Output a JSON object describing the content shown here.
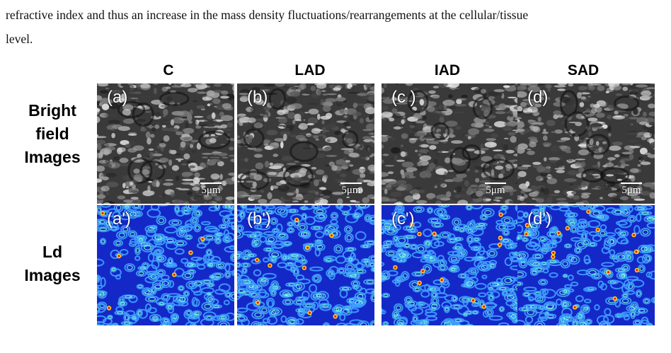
{
  "paragraph": {
    "line1": "refractive index and thus an increase in the mass density fluctuations/rearrangements at the cellular/tissue",
    "line2": "level."
  },
  "figure": {
    "column_headers": [
      "C",
      "LAD",
      "IAD",
      "SAD"
    ],
    "row_headers": {
      "bright": [
        "Bright",
        "field",
        "Images"
      ],
      "ld": [
        "Ld",
        "Images"
      ]
    },
    "bright_panels": [
      {
        "label": "(a)",
        "scale": "5μm"
      },
      {
        "label": "(b)",
        "scale": "5μm"
      },
      {
        "label": "(c )",
        "scale": "5μm"
      },
      {
        "label": "(d)",
        "scale": "5μm"
      }
    ],
    "ld_panels": [
      {
        "label": "(a')"
      },
      {
        "label": "(b')"
      },
      {
        "label": "(c')"
      },
      {
        "label": "(d')"
      }
    ],
    "colors": {
      "ld_background": "#1428c8",
      "ld_mid": "#3fa0ff",
      "ld_high": "#7fffd4",
      "ld_hot": "#ffd21e",
      "ld_peak": "#e02010"
    }
  }
}
